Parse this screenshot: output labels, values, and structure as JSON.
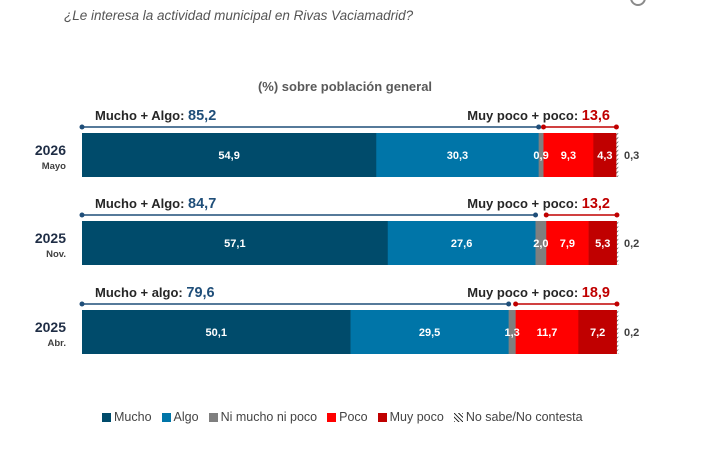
{
  "question": "¿Le interesa la actividad municipal en Rivas Vaciamadrid?",
  "chart_data": {
    "type": "bar",
    "orientation": "horizontal",
    "stacked": true,
    "title": "(%) sobre población general",
    "categories": [
      {
        "year": "2026",
        "month": "Mayo"
      },
      {
        "year": "2025",
        "month": "Nov."
      },
      {
        "year": "2025",
        "month": "Abr."
      }
    ],
    "series": [
      {
        "name": "Mucho",
        "color": "#004b6b",
        "values": [
          54.9,
          57.1,
          50.1
        ],
        "labels": [
          "54,9",
          "57,1",
          "50,1"
        ]
      },
      {
        "name": "Algo",
        "color": "#0075a8",
        "values": [
          30.3,
          27.6,
          29.5
        ],
        "labels": [
          "30,3",
          "27,6",
          "29,5"
        ]
      },
      {
        "name": "Ni mucho ni poco",
        "color": "#7f7f7f",
        "values": [
          0.9,
          2.0,
          1.3
        ],
        "labels": [
          "0,9",
          "2,0",
          "1,3"
        ]
      },
      {
        "name": "Poco",
        "color": "#ff0000",
        "values": [
          9.3,
          7.9,
          11.7
        ],
        "labels": [
          "9,3",
          "7,9",
          "11,7"
        ]
      },
      {
        "name": "Muy poco",
        "color": "#c00000",
        "values": [
          4.3,
          5.3,
          7.2
        ],
        "labels": [
          "4,3",
          "5,3",
          "7,2"
        ]
      },
      {
        "name": "No sabe/No contesta",
        "color": "hatch",
        "values": [
          0.3,
          0.2,
          0.2
        ],
        "labels": [
          "0,3",
          "0,2",
          "0,2"
        ]
      }
    ],
    "positive_summary": [
      {
        "label": "Mucho + Algo:",
        "value": "85,2"
      },
      {
        "label": "Mucho + Algo:",
        "value": "84,7"
      },
      {
        "label": "Mucho + algo:",
        "value": "79,6"
      }
    ],
    "negative_summary": [
      {
        "label": "Muy poco + poco:",
        "value": "13,6"
      },
      {
        "label": "Muy poco + poco:",
        "value": "13,2"
      },
      {
        "label": "Muy poco + poco:",
        "value": "18,9"
      }
    ],
    "colors": {
      "positive_bracket": "#1f4e79",
      "negative_bracket": "#c00000",
      "label": "#404040"
    },
    "xlim": [
      0,
      100
    ],
    "legend_position": "bottom"
  }
}
